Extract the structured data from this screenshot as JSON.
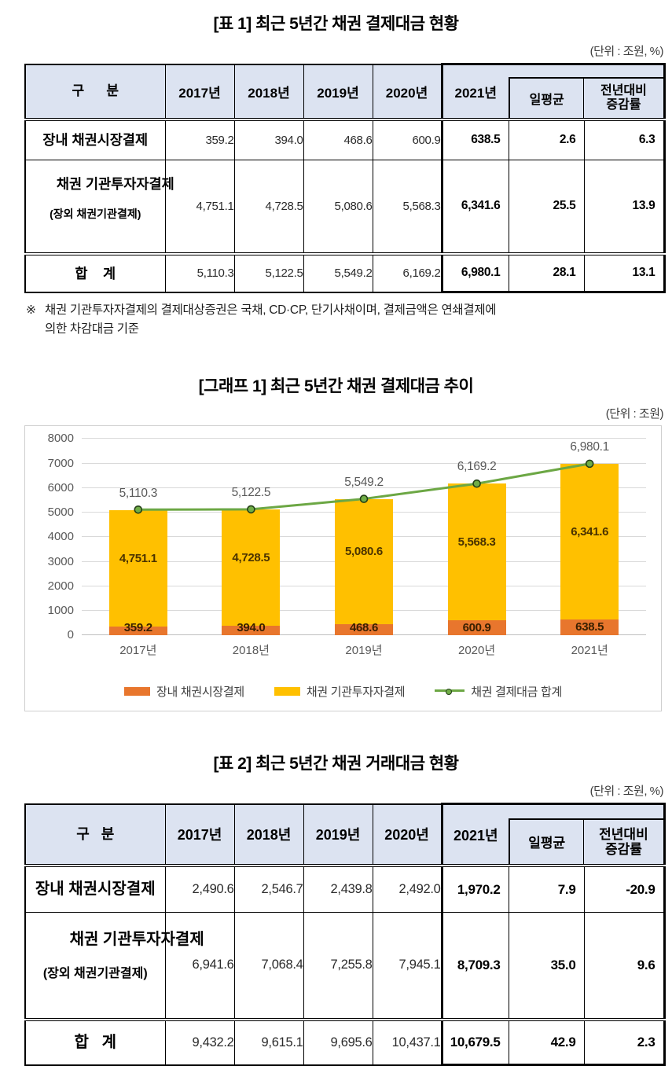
{
  "table1": {
    "title": "[표 1] 최근 5년간 채권 결제대금 현황",
    "unit": "(단위 : 조원, %)",
    "header": {
      "category": "구      분",
      "years": [
        "2017년",
        "2018년",
        "2019년",
        "2020년"
      ],
      "year2021": "2021년",
      "daily_avg": "일평균",
      "yoy_line1": "전년대비",
      "yoy_line2": "증감률"
    },
    "rows": [
      {
        "label": "장내 채권시장결제",
        "v": [
          "359.2",
          "394.0",
          "468.6",
          "600.9"
        ],
        "v2021": "638.5",
        "daily": "2.6",
        "yoy": "6.3"
      },
      {
        "label": "채권 기관투자자결제",
        "sub": "(장외 채권기관결제)",
        "v": [
          "4,751.1",
          "4,728.5",
          "5,080.6",
          "5,568.3"
        ],
        "v2021": "6,341.6",
        "daily": "25.5",
        "yoy": "13.9"
      },
      {
        "label": "합    계",
        "v": [
          "5,110.3",
          "5,122.5",
          "5,549.2",
          "6,169.2"
        ],
        "v2021": "6,980.1",
        "daily": "28.1",
        "yoy": "13.1"
      }
    ],
    "footnote": {
      "marker": "※",
      "line1": "채권 기관투자자결제의 결제대상증권은 국채, CD·CP, 단기사채이며, 결제금액은 연쇄결제에",
      "line2": "의한 차감대금 기준"
    }
  },
  "chart": {
    "title": "[그래프 1] 최근 5년간 채권 결제대금 추이",
    "unit": "(단위 : 조원)",
    "chart_data": {
      "type": "bar",
      "subtype": "stacked-bar-with-line",
      "categories": [
        "2017년",
        "2018년",
        "2019년",
        "2020년",
        "2021년"
      ],
      "series": [
        {
          "name": "장내 채권시장결제",
          "type": "bar",
          "stack": true,
          "color": "#E8762D",
          "values": [
            359.2,
            394.0,
            468.6,
            600.9,
            638.5
          ],
          "labels": [
            "359.2",
            "394.0",
            "468.6",
            "600.9",
            "638.5"
          ],
          "label_color": "#3a2000"
        },
        {
          "name": "채권 기관투자자결제",
          "type": "bar",
          "stack": true,
          "color": "#FFC000",
          "values": [
            4751.1,
            4728.5,
            5080.6,
            5568.3,
            6341.6
          ],
          "labels": [
            "4,751.1",
            "4,728.5",
            "5,080.6",
            "5,568.3",
            "6,341.6"
          ],
          "label_color": "#4a3200"
        },
        {
          "name": "채권 결제대금 합계",
          "type": "line",
          "color": "#6CA744",
          "values": [
            5110.3,
            5122.5,
            5549.2,
            6169.2,
            6980.1
          ],
          "labels": [
            "5,110.3",
            "5,122.5",
            "5,549.2",
            "6,169.2",
            "6,980.1"
          ],
          "label_color": "#595959",
          "marker_fill": "#70AD47",
          "marker_stroke": "#233f17"
        }
      ],
      "xlabel": "",
      "ylabel": "",
      "ylim": [
        0,
        8000
      ],
      "ytick_step": 1000,
      "grid": true,
      "legend_position": "bottom"
    }
  },
  "table2": {
    "title": "[표 2] 최근 5년간 채권 거래대금 현황",
    "unit": "(단위 : 조원, %)",
    "header": {
      "category": "구   분",
      "years": [
        "2017년",
        "2018년",
        "2019년",
        "2020년"
      ],
      "year2021": "2021년",
      "daily_avg": "일평균",
      "yoy_line1": "전년대비",
      "yoy_line2": "증감률"
    },
    "rows": [
      {
        "label": "장내 채권시장결제",
        "v": [
          "2,490.6",
          "2,546.7",
          "2,439.8",
          "2,492.0"
        ],
        "v2021": "1,970.2",
        "daily": "7.9",
        "yoy": "-20.9"
      },
      {
        "label": "채권 기관투자자결제",
        "sub": "(장외 채권기관결제)",
        "v": [
          "6,941.6",
          "7,068.4",
          "7,255.8",
          "7,945.1"
        ],
        "v2021": "8,709.3",
        "daily": "35.0",
        "yoy": "9.6"
      },
      {
        "label": "합   계",
        "v": [
          "9,432.2",
          "9,615.1",
          "9,695.6",
          "10,437.1"
        ],
        "v2021": "10,679.5",
        "daily": "42.9",
        "yoy": "2.3"
      }
    ]
  }
}
